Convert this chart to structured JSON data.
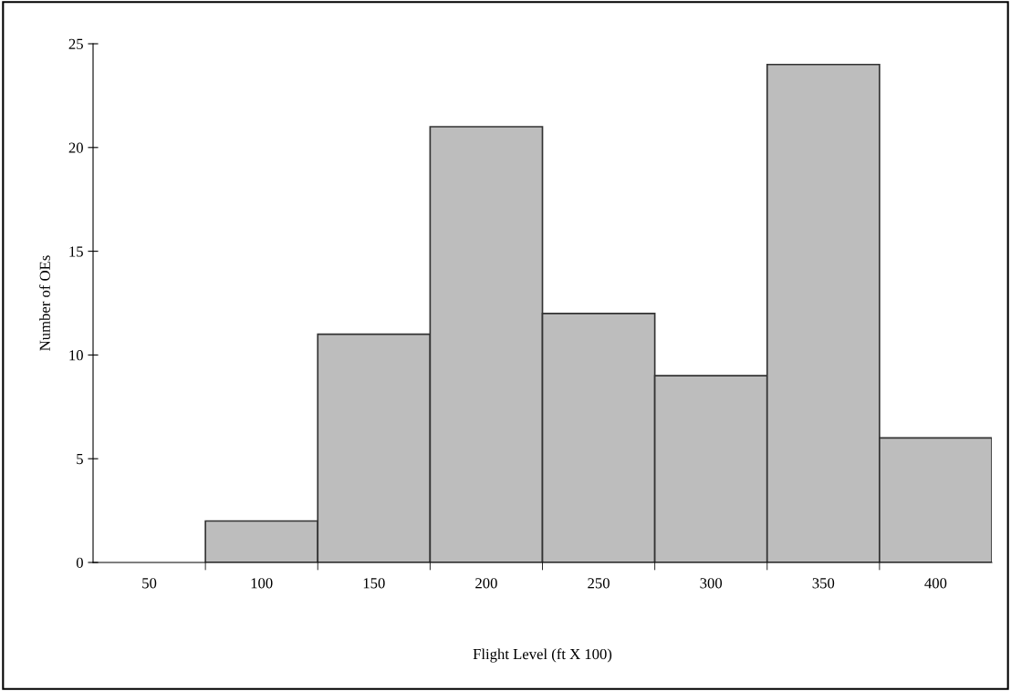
{
  "chart_data": {
    "type": "bar",
    "xlabel": "Flight Level (ft X 100)",
    "ylabel": "Number of OEs",
    "categories": [
      "50",
      "100",
      "150",
      "200",
      "250",
      "300",
      "350",
      "400"
    ],
    "values": [
      0,
      2,
      11,
      21,
      12,
      9,
      24,
      6
    ],
    "color": "#bdbdbd",
    "ylim": [
      0,
      25
    ],
    "yticks": [
      0,
      5,
      10,
      15,
      20,
      25
    ],
    "grid": false
  }
}
